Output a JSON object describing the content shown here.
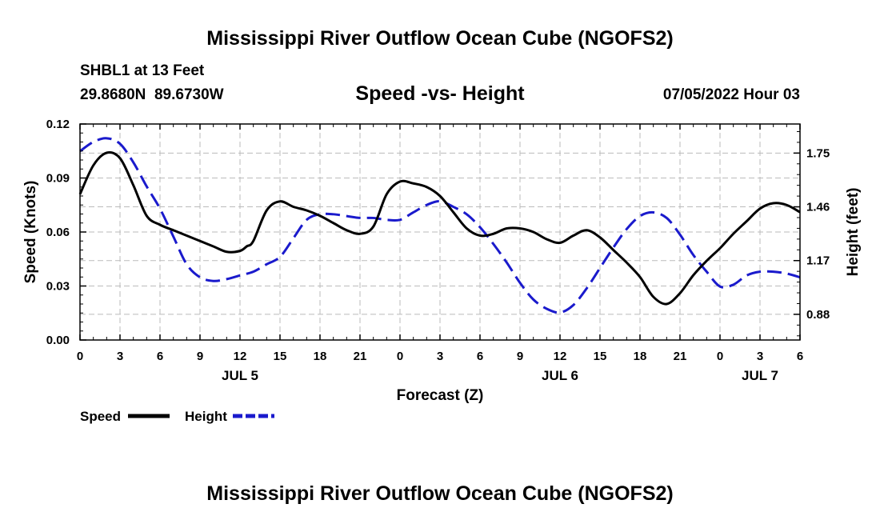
{
  "header": {
    "title": "Mississippi River Outflow Ocean Cube (NGOFS2)",
    "station": "SHBL1 at 13 Feet",
    "coords": "29.8680N  89.6730W",
    "subtitle": "Speed -vs- Height",
    "datetime": "07/05/2022 Hour 03"
  },
  "footer": {
    "title": "Mississippi River Outflow Ocean Cube (NGOFS2)"
  },
  "chart_data": {
    "type": "line",
    "xlabel": "Forecast (Z)",
    "ylabel": "Speed (Knots)",
    "y2label": "Height (feet)",
    "xlim": [
      0,
      54
    ],
    "ylim": [
      0,
      0.12
    ],
    "y2lim": [
      0.7415,
      1.9069
    ],
    "grid": true,
    "x_ticks": [
      0,
      3,
      6,
      9,
      12,
      15,
      18,
      21,
      24,
      27,
      30,
      33,
      36,
      39,
      42,
      45,
      48,
      51,
      54
    ],
    "x_tick_labels": [
      "0",
      "3",
      "6",
      "9",
      "12",
      "15",
      "18",
      "21",
      "0",
      "3",
      "6",
      "9",
      "12",
      "15",
      "18",
      "21",
      "0",
      "3",
      "6"
    ],
    "date_labels": [
      {
        "x": 12,
        "label": "JUL 5"
      },
      {
        "x": 36,
        "label": "JUL 6"
      },
      {
        "x": 51,
        "label": "JUL 7"
      }
    ],
    "y_ticks": [
      0.0,
      0.03,
      0.06,
      0.09,
      0.12
    ],
    "y_tick_labels": [
      "0.00",
      "0.03",
      "0.06",
      "0.09",
      "0.12"
    ],
    "y2_ticks": [
      0.88,
      1.17,
      1.46,
      1.75
    ],
    "y2_tick_labels": [
      "0.88",
      "1.17",
      "1.46",
      "1.75"
    ],
    "series": [
      {
        "name": "Speed",
        "axis": "left",
        "color": "#000000",
        "dash": "solid",
        "x": [
          0,
          1,
          2,
          3,
          4,
          5,
          6,
          7,
          8,
          9,
          10,
          11,
          12,
          12.5,
          13,
          14,
          15,
          16,
          17,
          18,
          19,
          20,
          21,
          22,
          23,
          24,
          25,
          26,
          27,
          28,
          29,
          30,
          31,
          32,
          33,
          34,
          35,
          36,
          37,
          38,
          39,
          40,
          41,
          42,
          43,
          44,
          45,
          46,
          47,
          48,
          49,
          50,
          51,
          52,
          53,
          54
        ],
        "y": [
          0.081,
          0.097,
          0.104,
          0.101,
          0.086,
          0.069,
          0.064,
          0.061,
          0.058,
          0.055,
          0.052,
          0.049,
          0.0495,
          0.052,
          0.055,
          0.072,
          0.077,
          0.074,
          0.072,
          0.069,
          0.065,
          0.061,
          0.059,
          0.063,
          0.081,
          0.088,
          0.087,
          0.085,
          0.08,
          0.071,
          0.062,
          0.058,
          0.059,
          0.062,
          0.062,
          0.06,
          0.056,
          0.054,
          0.058,
          0.061,
          0.057,
          0.05,
          0.043,
          0.035,
          0.024,
          0.02,
          0.026,
          0.036,
          0.044,
          0.051,
          0.059,
          0.066,
          0.073,
          0.076,
          0.075,
          0.071
        ]
      },
      {
        "name": "Height",
        "axis": "right",
        "color": "#1a1acc",
        "dash": "dashed",
        "x": [
          0,
          1,
          2,
          3,
          4,
          5,
          6,
          7,
          8,
          9,
          10,
          11,
          12,
          13,
          14,
          15,
          16,
          17,
          18,
          19,
          20,
          21,
          22,
          23,
          24,
          25,
          26,
          27,
          28,
          29,
          30,
          31,
          32,
          33,
          34,
          35,
          36,
          37,
          38,
          39,
          40,
          41,
          42,
          43,
          44,
          45,
          46,
          47,
          48,
          49,
          50,
          51,
          52,
          53,
          54
        ],
        "y": [
          1.76,
          1.81,
          1.83,
          1.8,
          1.7,
          1.57,
          1.45,
          1.3,
          1.15,
          1.08,
          1.06,
          1.07,
          1.09,
          1.11,
          1.15,
          1.19,
          1.29,
          1.39,
          1.42,
          1.42,
          1.41,
          1.4,
          1.4,
          1.39,
          1.39,
          1.43,
          1.47,
          1.49,
          1.46,
          1.42,
          1.35,
          1.26,
          1.16,
          1.05,
          0.96,
          0.91,
          0.89,
          0.93,
          1.02,
          1.13,
          1.24,
          1.34,
          1.41,
          1.43,
          1.4,
          1.31,
          1.2,
          1.11,
          1.03,
          1.04,
          1.09,
          1.11,
          1.11,
          1.1,
          1.08
        ]
      }
    ]
  }
}
